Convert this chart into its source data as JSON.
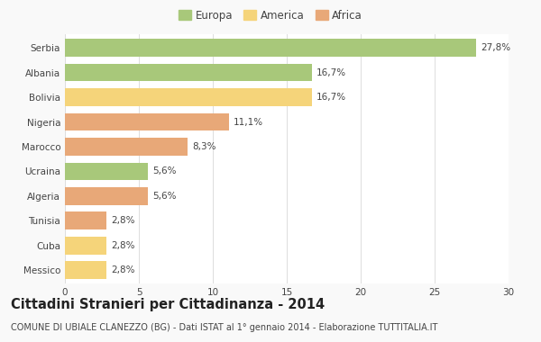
{
  "categories": [
    "Serbia",
    "Albania",
    "Bolivia",
    "Nigeria",
    "Marocco",
    "Ucraina",
    "Algeria",
    "Tunisia",
    "Cuba",
    "Messico"
  ],
  "values": [
    27.8,
    16.7,
    16.7,
    11.1,
    8.3,
    5.6,
    5.6,
    2.8,
    2.8,
    2.8
  ],
  "labels": [
    "27,8%",
    "16,7%",
    "16,7%",
    "11,1%",
    "8,3%",
    "5,6%",
    "5,6%",
    "2,8%",
    "2,8%",
    "2,8%"
  ],
  "colors": [
    "#a8c87a",
    "#a8c87a",
    "#f5d47a",
    "#e8a878",
    "#e8a878",
    "#a8c87a",
    "#e8a878",
    "#e8a878",
    "#f5d47a",
    "#f5d47a"
  ],
  "legend_labels": [
    "Europa",
    "America",
    "Africa"
  ],
  "legend_colors": [
    "#a8c87a",
    "#f5d47a",
    "#e8a878"
  ],
  "title": "Cittadini Stranieri per Cittadinanza - 2014",
  "subtitle": "COMUNE DI UBIALE CLANEZZO (BG) - Dati ISTAT al 1° gennaio 2014 - Elaborazione TUTTITALIA.IT",
  "xlim": [
    0,
    30
  ],
  "xticks": [
    0,
    5,
    10,
    15,
    20,
    25,
    30
  ],
  "background_color": "#f9f9f9",
  "bar_background": "#ffffff",
  "grid_color": "#dddddd",
  "text_color": "#444444",
  "title_fontsize": 10.5,
  "subtitle_fontsize": 7,
  "label_fontsize": 7.5,
  "tick_fontsize": 7.5,
  "legend_fontsize": 8.5
}
